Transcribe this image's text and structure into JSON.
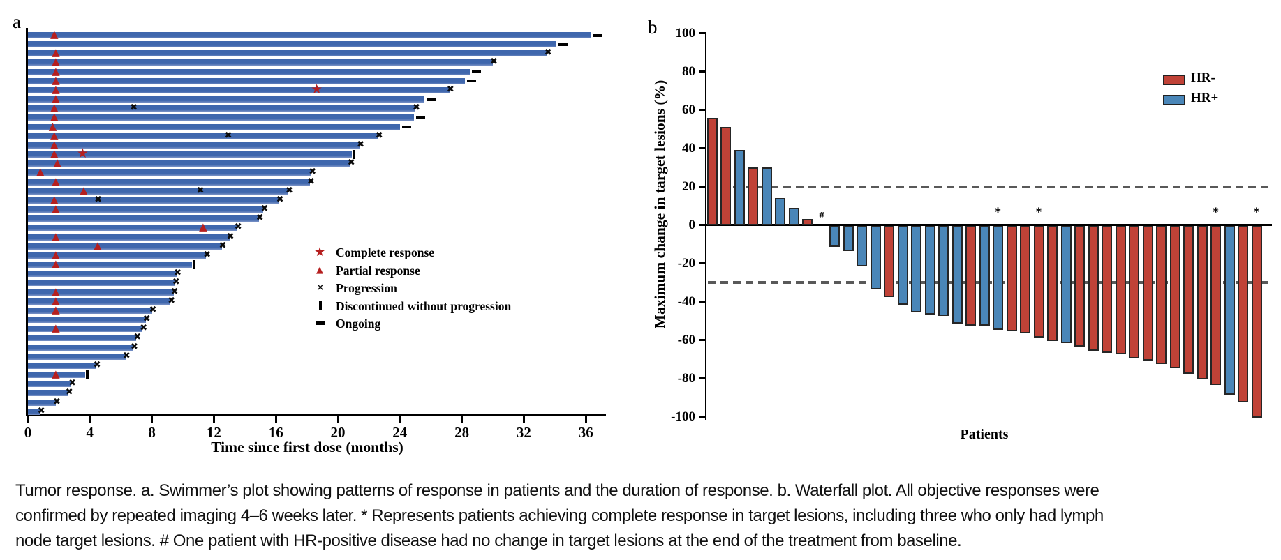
{
  "figure": {
    "panel_a_label": "a",
    "panel_b_label": "b",
    "caption_lines": [
      "Tumor response. a. Swimmer’s plot showing patterns of response in patients and the duration of response. b. Waterfall plot. All objective responses were",
      "confirmed by repeated imaging 4–6 weeks later. * Represents patients achieving complete response in target lesions, including three who only had lymph",
      "node target lesions. # One patient with HR-positive disease had no change in target lesions at the end of the treatment from baseline."
    ]
  },
  "colors": {
    "swimmer_bar": "#3f67ad",
    "hr_neg": "#c04237",
    "hr_pos": "#4a86b8",
    "marker_red": "#b51f1f",
    "dashed_line": "#595959",
    "axis": "#000000"
  },
  "chart_data": [
    {
      "type": "bar",
      "name": "swimmers-plot",
      "orientation": "horizontal",
      "xlabel": "Time since first dose (months)",
      "xlim": [
        0,
        37.5
      ],
      "x_ticks": [
        0,
        4,
        8,
        12,
        16,
        20,
        24,
        28,
        32,
        36
      ],
      "legend": [
        {
          "symbol": "star",
          "label": "Complete response"
        },
        {
          "symbol": "triangle",
          "label": "Partial response"
        },
        {
          "symbol": "x",
          "label": "Progression"
        },
        {
          "symbol": "bar-vertical",
          "label": "Discontinued without progression"
        },
        {
          "symbol": "dash",
          "label": "Ongoing"
        }
      ],
      "rows": [
        {
          "months": 36.3,
          "end": "ongoing",
          "pr": [
            1.8
          ]
        },
        {
          "months": 34.1,
          "end": "ongoing"
        },
        {
          "months": 33.5,
          "end": "x",
          "pr": [
            1.9
          ]
        },
        {
          "months": 30.0,
          "end": "x",
          "pr": [
            1.9
          ]
        },
        {
          "months": 28.5,
          "end": "ongoing",
          "pr": [
            1.9
          ]
        },
        {
          "months": 28.2,
          "end": "ongoing",
          "pr": [
            1.9
          ]
        },
        {
          "months": 27.2,
          "end": "x",
          "pr": [
            1.9
          ],
          "cr": [
            18.7
          ]
        },
        {
          "months": 25.6,
          "end": "ongoing",
          "pr": [
            1.9
          ]
        },
        {
          "months": 25.0,
          "end": "x",
          "pr": [
            1.8
          ],
          "x_marks": [
            6.9
          ]
        },
        {
          "months": 24.9,
          "end": "ongoing",
          "pr": [
            1.8
          ]
        },
        {
          "months": 24.0,
          "end": "ongoing",
          "pr": [
            1.7
          ]
        },
        {
          "months": 22.6,
          "end": "x",
          "pr": [
            1.8
          ],
          "x_marks": [
            13.0
          ]
        },
        {
          "months": 21.4,
          "end": "x",
          "pr": [
            1.8
          ]
        },
        {
          "months": 20.9,
          "end": "disc",
          "pr": [
            1.8
          ],
          "cr": [
            3.6
          ]
        },
        {
          "months": 20.8,
          "end": "x",
          "pr": [
            2.0
          ]
        },
        {
          "months": 18.3,
          "end": "x",
          "pr": [
            0.9
          ]
        },
        {
          "months": 18.2,
          "end": "x",
          "pr": [
            1.9
          ]
        },
        {
          "months": 16.8,
          "end": "x",
          "pr": [
            3.7
          ],
          "x_marks": [
            11.2
          ]
        },
        {
          "months": 16.2,
          "end": "x",
          "pr": [
            1.8
          ],
          "x_marks": [
            4.6
          ]
        },
        {
          "months": 15.2,
          "end": "x",
          "pr": [
            1.9
          ]
        },
        {
          "months": 14.9,
          "end": "x"
        },
        {
          "months": 13.5,
          "end": "x",
          "pr": [
            11.4
          ]
        },
        {
          "months": 13.0,
          "end": "x",
          "pr": [
            1.9
          ]
        },
        {
          "months": 12.5,
          "end": "x",
          "pr": [
            4.6
          ]
        },
        {
          "months": 11.5,
          "end": "x",
          "pr": [
            1.9
          ]
        },
        {
          "months": 10.6,
          "end": "disc",
          "pr": [
            1.9
          ]
        },
        {
          "months": 9.6,
          "end": "x"
        },
        {
          "months": 9.5,
          "end": "x"
        },
        {
          "months": 9.4,
          "end": "x",
          "pr": [
            1.9
          ]
        },
        {
          "months": 9.2,
          "end": "x",
          "pr": [
            1.9
          ]
        },
        {
          "months": 8.0,
          "end": "x",
          "pr": [
            1.9
          ]
        },
        {
          "months": 7.6,
          "end": "x"
        },
        {
          "months": 7.4,
          "end": "x",
          "pr": [
            1.9
          ]
        },
        {
          "months": 7.0,
          "end": "x"
        },
        {
          "months": 6.8,
          "end": "x"
        },
        {
          "months": 6.3,
          "end": "x"
        },
        {
          "months": 4.4,
          "end": "x"
        },
        {
          "months": 3.7,
          "end": "disc",
          "pr": [
            1.9
          ]
        },
        {
          "months": 2.8,
          "end": "x"
        },
        {
          "months": 2.6,
          "end": "x"
        },
        {
          "months": 1.8,
          "end": "x"
        },
        {
          "months": 0.8,
          "end": "x"
        }
      ]
    },
    {
      "type": "bar",
      "name": "waterfall-plot",
      "xlabel": "Patients",
      "ylabel": "Maximum change in target lesions (%)",
      "ylim": [
        -100,
        100
      ],
      "y_ticks": [
        100,
        80,
        60,
        40,
        20,
        0,
        -20,
        -40,
        -60,
        -80,
        -100
      ],
      "reference_lines": [
        20,
        -30
      ],
      "legend": [
        {
          "label": "HR-",
          "color_key": "hr_neg"
        },
        {
          "label": "HR+",
          "color_key": "hr_pos"
        }
      ],
      "bars": [
        {
          "value": 56,
          "group": "HR-"
        },
        {
          "value": 51,
          "group": "HR-"
        },
        {
          "value": 39,
          "group": "HR+"
        },
        {
          "value": 30,
          "group": "HR-"
        },
        {
          "value": 30,
          "group": "HR+"
        },
        {
          "value": 14,
          "group": "HR+"
        },
        {
          "value": 9,
          "group": "HR+"
        },
        {
          "value": 3,
          "group": "HR-"
        },
        {
          "value": 0,
          "group": "HR+",
          "mark": "#"
        },
        {
          "value": -11,
          "group": "HR+"
        },
        {
          "value": -13,
          "group": "HR+"
        },
        {
          "value": -21,
          "group": "HR+"
        },
        {
          "value": -33,
          "group": "HR+"
        },
        {
          "value": -37,
          "group": "HR-"
        },
        {
          "value": -41,
          "group": "HR+"
        },
        {
          "value": -45,
          "group": "HR+"
        },
        {
          "value": -46,
          "group": "HR+"
        },
        {
          "value": -47,
          "group": "HR+"
        },
        {
          "value": -51,
          "group": "HR+"
        },
        {
          "value": -52,
          "group": "HR-"
        },
        {
          "value": -52,
          "group": "HR+"
        },
        {
          "value": -54,
          "group": "HR+",
          "mark": "*"
        },
        {
          "value": -55,
          "group": "HR-"
        },
        {
          "value": -56,
          "group": "HR-"
        },
        {
          "value": -58,
          "group": "HR-",
          "mark": "*"
        },
        {
          "value": -60,
          "group": "HR-"
        },
        {
          "value": -61,
          "group": "HR+"
        },
        {
          "value": -63,
          "group": "HR-"
        },
        {
          "value": -65,
          "group": "HR-"
        },
        {
          "value": -66,
          "group": "HR-"
        },
        {
          "value": -67,
          "group": "HR-"
        },
        {
          "value": -69,
          "group": "HR-"
        },
        {
          "value": -70,
          "group": "HR-"
        },
        {
          "value": -72,
          "group": "HR-"
        },
        {
          "value": -74,
          "group": "HR-"
        },
        {
          "value": -77,
          "group": "HR-"
        },
        {
          "value": -80,
          "group": "HR-"
        },
        {
          "value": -83,
          "group": "HR-",
          "mark": "*"
        },
        {
          "value": -88,
          "group": "HR+"
        },
        {
          "value": -92,
          "group": "HR-"
        },
        {
          "value": -100,
          "group": "HR-",
          "mark": "*"
        }
      ]
    }
  ]
}
